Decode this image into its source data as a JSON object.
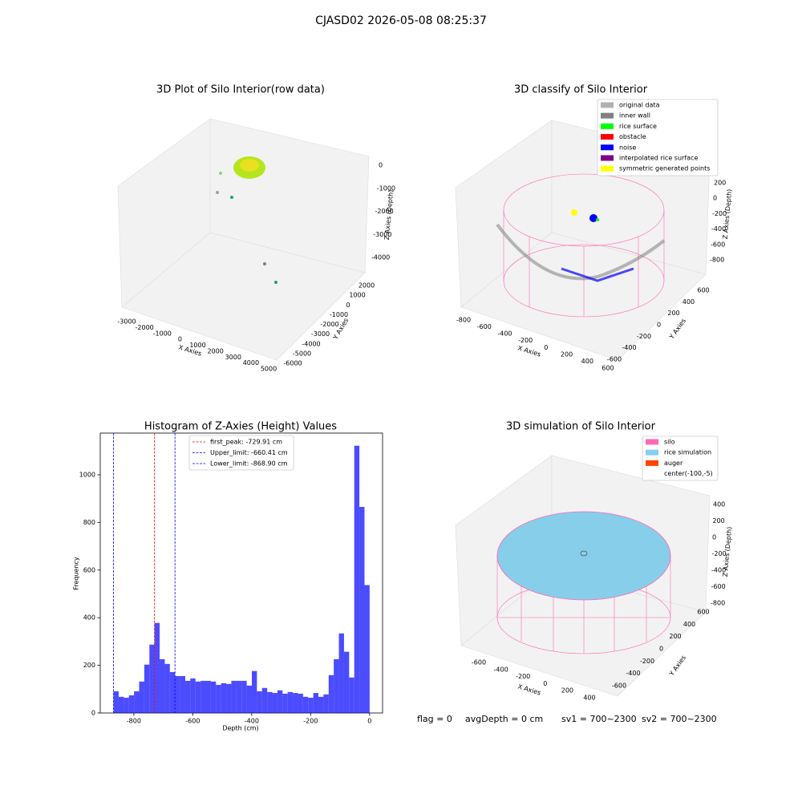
{
  "suptitle": "CJASD02 2026-05-08 08:25:37",
  "chart_data": [
    {
      "type": "scatter3d",
      "title": "3D Plot of Silo Interior(row data)",
      "xlabel": "X Axies",
      "ylabel": "Y Axies",
      "zlabel": "Z Axies (Depth)",
      "xticks": [
        -3000,
        -2000,
        -1000,
        0,
        1000,
        2000,
        3000,
        4000,
        5000
      ],
      "yticks": [
        -6000,
        -5000,
        -4000,
        -3000,
        -2000,
        -1000,
        0,
        1000,
        2000
      ],
      "zticks": [
        -4000,
        -3000,
        -2000,
        -1000,
        0
      ]
    },
    {
      "type": "scatter3d",
      "title": "3D classify of Silo Interior",
      "xlabel": "X Axies",
      "ylabel": "Y Axies",
      "zlabel": "Z Axies (Depth)",
      "xticks": [
        -800,
        -600,
        -400,
        -200,
        0,
        200,
        400,
        600
      ],
      "yticks": [
        -600,
        -400,
        -200,
        0,
        200,
        400,
        600
      ],
      "zticks": [
        -800,
        -600,
        -400,
        -200,
        0,
        200
      ],
      "legend": [
        {
          "name": "original data",
          "color": "#b0b0b0"
        },
        {
          "name": "inner wall",
          "color": "#808080"
        },
        {
          "name": "rice surface",
          "color": "#00ff00"
        },
        {
          "name": "obstacle",
          "color": "#ff0000"
        },
        {
          "name": "noise",
          "color": "#0000ff"
        },
        {
          "name": "interpolated rice surface",
          "color": "#800080"
        },
        {
          "name": "symmetric generated points",
          "color": "#ffff00"
        }
      ]
    },
    {
      "type": "histogram",
      "title": "Histogram of Z-Axies (Height) Values",
      "xlabel": "Depth (cm)",
      "ylabel": "Frequency",
      "color": "#0000ff",
      "bins": [
        -868.9,
        -851.52,
        -834.14,
        -816.76,
        -799.38,
        -782.0,
        -764.62,
        -747.24,
        -729.86,
        -712.48,
        -695.1,
        -677.72,
        -660.34,
        -642.96,
        -625.58,
        -608.2,
        -590.82,
        -573.44,
        -556.06,
        -538.68,
        -521.3,
        -503.92,
        -486.54,
        -469.16,
        -451.78,
        -434.4,
        -417.02,
        -399.64,
        -382.26,
        -364.88,
        -347.5,
        -330.12,
        -312.74,
        -295.36,
        -277.98,
        -260.6,
        -243.22,
        -225.84,
        -208.46,
        -191.08,
        -173.7,
        -156.32,
        -138.94,
        -121.56,
        -104.18,
        -86.8,
        -69.42,
        -52.04,
        -34.66,
        -17.28,
        0.1
      ],
      "values": [
        91,
        68,
        64,
        74,
        91,
        132,
        203,
        287,
        378,
        226,
        206,
        172,
        155,
        155,
        135,
        145,
        132,
        135,
        135,
        132,
        118,
        125,
        122,
        135,
        135,
        135,
        115,
        176,
        91,
        105,
        88,
        84,
        95,
        81,
        88,
        84,
        81,
        68,
        64,
        84,
        68,
        78,
        159,
        226,
        334,
        257,
        149,
        1122,
        865,
        537
      ],
      "xlim": [
        -914,
        44
      ],
      "ylim": [
        0,
        1175
      ],
      "xticks": [
        -800,
        -600,
        -400,
        -200,
        0
      ],
      "yticks": [
        0,
        200,
        400,
        600,
        800,
        1000
      ],
      "vlines": [
        {
          "label": "first_peak: -729.91 cm",
          "value": -729.91,
          "color": "#ff0000"
        },
        {
          "label": "Upper_limit: -660.41 cm",
          "value": -660.41,
          "color": "#0000ff"
        },
        {
          "label": "Lower_limit: -868.90 cm",
          "value": -868.9,
          "color": "#0000ff"
        }
      ]
    },
    {
      "type": "scatter3d",
      "title": "3D simulation of Silo Interior",
      "xlabel": "X Axies",
      "ylabel": "Y Axies",
      "zlabel": "Z Axies (Depth)",
      "xticks": [
        -600,
        -400,
        -200,
        0,
        200,
        400
      ],
      "yticks": [
        -600,
        -400,
        -200,
        0,
        200,
        400,
        600
      ],
      "zticks": [
        -800,
        -600,
        -400,
        -200,
        0,
        200,
        400
      ],
      "legend": [
        {
          "name": "silo",
          "color": "#ff69b4"
        },
        {
          "name": "rice simulation",
          "color": "#87ceeb"
        },
        {
          "name": "auger",
          "color": "#ff4500"
        },
        {
          "name": "center(-100,-5)",
          "color": "#ffffff"
        }
      ]
    }
  ],
  "footer": [
    "flag = 0",
    "avgDepth = 0 cm",
    "sv1 = 700~2300",
    "sv2 = 700~2300"
  ]
}
